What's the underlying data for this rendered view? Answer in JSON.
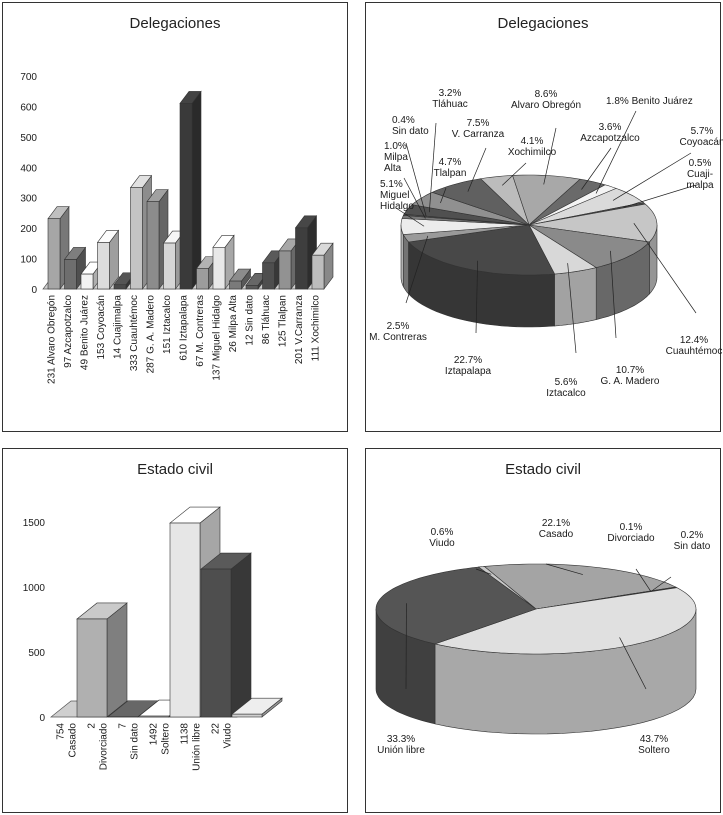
{
  "chart_data": [
    {
      "id": "deleg-bar",
      "type": "bar",
      "title": "Delegaciones",
      "ylim": [
        0,
        700
      ],
      "yticks": [
        0,
        100,
        200,
        300,
        400,
        500,
        600,
        700
      ],
      "categories": [
        "231 Alvaro Obregón",
        "97 Azcapotzalco",
        "49 Benito Juárez",
        "153 Coyoacán",
        "14 Cuajimalpa",
        "333 Cuauhtémoc",
        "287 G. A. Madero",
        "151 Iztacalco",
        "610 Iztapalapa",
        "67 M. Contreras",
        "137 Miguel Hidalgo",
        "26 Milpa Alta",
        "12 Sin dato",
        "86 Tláhuac",
        "125 Tlalpan",
        "201 V.Carranza",
        "111 Xochimilco"
      ],
      "values": [
        231,
        97,
        49,
        153,
        14,
        333,
        287,
        151,
        610,
        67,
        137,
        26,
        12,
        86,
        125,
        201,
        111
      ],
      "colors": [
        "#a6a6a6",
        "#6e6e6e",
        "#f2f2f2",
        "#dcdcdc",
        "#4a4a4a",
        "#c4c4c4",
        "#8c8c8c",
        "#d6d6d6",
        "#3a3a3a",
        "#9c9c9c",
        "#e8e8e8",
        "#7a7a7a",
        "#5a5a5a",
        "#4e4e4e",
        "#929292",
        "#3e3e3e",
        "#bdbdbd"
      ]
    },
    {
      "id": "deleg-pie",
      "type": "pie",
      "title": "Delegaciones",
      "slices": [
        {
          "pct": "8.6%",
          "name": "Alvaro Obregón",
          "value": 8.6,
          "color": "#a8a8a8"
        },
        {
          "pct": "3.6%",
          "name": "Azcapotzalco",
          "value": 3.6,
          "color": "#6a6a6a"
        },
        {
          "pct": "1.8%",
          "name": "Benito Juárez",
          "value": 1.8,
          "color": "#f4f4f4"
        },
        {
          "pct": "5.7%",
          "name": "Coyoacán",
          "value": 5.7,
          "color": "#dadada"
        },
        {
          "pct": "0.5%",
          "name": "Cuaji-malpa",
          "value": 0.5,
          "color": "#4a4a4a"
        },
        {
          "pct": "12.4%",
          "name": "Cuauhtémoc",
          "value": 12.4,
          "color": "#c6c6c6"
        },
        {
          "pct": "10.7%",
          "name": "G. A. Madero",
          "value": 10.7,
          "color": "#8a8a8a"
        },
        {
          "pct": "5.6%",
          "name": "Iztacalco",
          "value": 5.6,
          "color": "#d8d8d8"
        },
        {
          "pct": "22.7%",
          "name": "Iztapalapa",
          "value": 22.7,
          "color": "#484848"
        },
        {
          "pct": "2.5%",
          "name": "M. Contreras",
          "value": 2.5,
          "color": "#9a9a9a"
        },
        {
          "pct": "5.1%",
          "name": "Miguel Hidalgo",
          "value": 5.1,
          "color": "#ececec"
        },
        {
          "pct": "1.0%",
          "name": "Milpa Alta",
          "value": 1.0,
          "color": "#787878"
        },
        {
          "pct": "0.4%",
          "name": "Sin dato",
          "value": 0.4,
          "color": "#5a5a5a"
        },
        {
          "pct": "3.2%",
          "name": "Tláhuac",
          "value": 3.2,
          "color": "#505050"
        },
        {
          "pct": "4.7%",
          "name": "Tlalpan",
          "value": 4.7,
          "color": "#909090"
        },
        {
          "pct": "7.5%",
          "name": "V. Carranza",
          "value": 7.5,
          "color": "#606060"
        },
        {
          "pct": "4.1%",
          "name": "Xochimilco",
          "value": 4.1,
          "color": "#bcbcbc"
        }
      ]
    },
    {
      "id": "civil-bar",
      "type": "bar",
      "title": "Estado civil",
      "ylim": [
        0,
        1500
      ],
      "yticks": [
        0,
        500,
        1000,
        1500
      ],
      "categories": [
        "754 Casado",
        "2 Divorciado",
        "7 Sin dato",
        "1492 Soltero",
        "1138 Unión libre",
        "22 Viudo"
      ],
      "values": [
        754,
        2,
        7,
        1492,
        1138,
        22
      ],
      "colors": [
        "#b0b0b0",
        "#5a5a5a",
        "#ededed",
        "#e6e6e6",
        "#4e4e4e",
        "#cfcfcf"
      ]
    },
    {
      "id": "civil-pie",
      "type": "pie",
      "title": "Estado civil",
      "slices": [
        {
          "pct": "22.1%",
          "name": "Casado",
          "value": 22.1,
          "color": "#a4a4a4"
        },
        {
          "pct": "0.1%",
          "name": "Divorciado",
          "value": 0.1,
          "color": "#707070"
        },
        {
          "pct": "0.2%",
          "name": "Sin dato",
          "value": 0.2,
          "color": "#909090"
        },
        {
          "pct": "43.7%",
          "name": "Soltero",
          "value": 43.7,
          "color": "#e0e0e0"
        },
        {
          "pct": "33.3%",
          "name": "Unión libre",
          "value": 33.3,
          "color": "#555555"
        },
        {
          "pct": "0.6%",
          "name": "Viudo",
          "value": 0.6,
          "color": "#c8c8c8"
        }
      ]
    }
  ]
}
